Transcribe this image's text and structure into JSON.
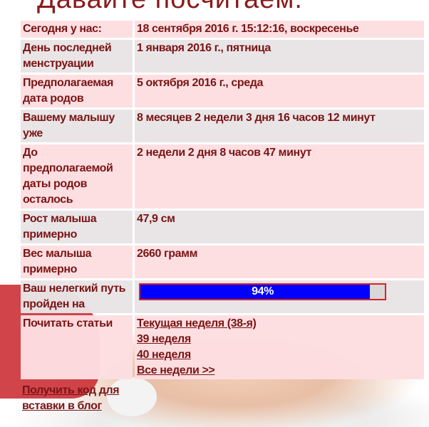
{
  "title": "Давайте посчитаем.",
  "rows": [
    {
      "label": "Сегодня у нас:",
      "value": "18 сентября 2016 г. 15:12:16, воскресенье"
    },
    {
      "label": "День последней менструации",
      "value": "1 января 2016 г., пятница"
    },
    {
      "label": "Предполагаемая дата родов",
      "value": "5 октября 2016 г., среда"
    },
    {
      "label": "Вашему малышу уже",
      "value": "8 месяцев 2 недели 3 дня 16 часов 12 минут"
    },
    {
      "label": "До предполагаемой даты родов осталось",
      "value": "2 недели 2 дня 8 часов 47 минут"
    },
    {
      "label": "Рост малыша примерно",
      "value": "47,9 см"
    },
    {
      "label": "Вес малыша примерно",
      "value": "2660 грамм"
    }
  ],
  "progress": {
    "label": "Ваш нелегкий путь пройден на",
    "text": "94%",
    "percent": 94,
    "fill_color": "#0000ff",
    "border_color": "#e02020"
  },
  "articles": {
    "label": "Почитать статьи",
    "links": [
      "Текущая неделя (38-я)",
      "39 неделя",
      "40 неделя",
      "Все недели >>"
    ]
  },
  "embed_link": "Получить код для вставки в блог"
}
